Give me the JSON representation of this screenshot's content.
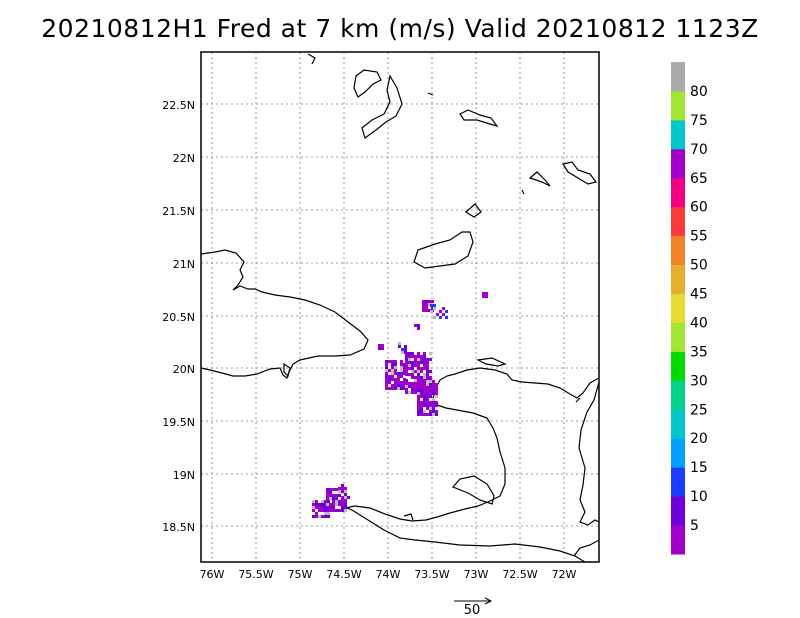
{
  "title": "20210812H1 Fred at 7 km (m/s) Valid 20210812 1123Z",
  "lat_ticks": [
    "22.5N",
    "22N",
    "21.5N",
    "21N",
    "20.5N",
    "20N",
    "19.5N",
    "19N",
    "18.5N"
  ],
  "lon_ticks": [
    "76W",
    "75.5W",
    "75W",
    "74.5W",
    "74W",
    "73.5W",
    "73W",
    "72.5W",
    "72W"
  ],
  "colorbar": {
    "labels": [
      "5",
      "10",
      "15",
      "20",
      "25",
      "30",
      "35",
      "40",
      "45",
      "50",
      "55",
      "60",
      "65",
      "70",
      "75",
      "80"
    ],
    "colors": [
      "#a000c8",
      "#6e00dc",
      "#1e3cff",
      "#00a0ff",
      "#00c8c8",
      "#00d28c",
      "#00dc00",
      "#a0e632",
      "#e6dc32",
      "#e6af2d",
      "#f08228",
      "#fa3c3c",
      "#f00082",
      "#a000c8",
      "#00c8c8",
      "#a0e632",
      "#aaaaaa"
    ]
  },
  "vector_ref": {
    "label": "50"
  },
  "colors": {
    "purple": "#a000c8",
    "violet": "#6e00dc",
    "blue": "#1e3cff",
    "gray": "#bbbbbb"
  }
}
